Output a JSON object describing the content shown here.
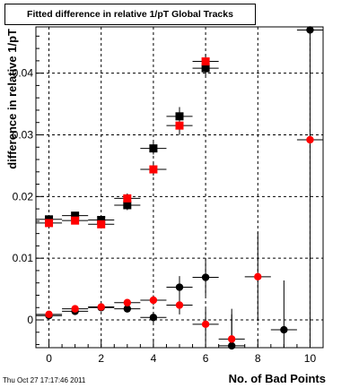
{
  "chart_data": {
    "type": "scatter",
    "title": "Fitted difference in relative 1/pT  Global Tracks",
    "xlabel": "No. of Bad Points",
    "ylabel": "difference in relative 1/pT",
    "xlim": [
      -0.5,
      10.5
    ],
    "ylim": [
      -0.0045,
      0.0475
    ],
    "x_ticks": [
      0,
      2,
      4,
      6,
      8,
      10
    ],
    "x_tick_labels": [
      "0",
      "2",
      "4",
      "6",
      "8",
      "10"
    ],
    "y_ticks": [
      0,
      0.01,
      0.02,
      0.03,
      0.04
    ],
    "y_tick_labels": [
      "0",
      "0.01",
      "0.02",
      "0.03",
      "0.04"
    ],
    "grid": true,
    "series": [
      {
        "marker": "square",
        "color": "#000000",
        "points": [
          {
            "x": 0,
            "y": 0.0163,
            "ey": 0.0006
          },
          {
            "x": 1,
            "y": 0.0169,
            "ey": 0.0006
          },
          {
            "x": 2,
            "y": 0.0162,
            "ey": 0.0006
          },
          {
            "x": 3,
            "y": 0.0186,
            "ey": 0.0008
          },
          {
            "x": 4,
            "y": 0.0278,
            "ey": 0.001
          },
          {
            "x": 5,
            "y": 0.033,
            "ey": 0.0015
          },
          {
            "x": 6,
            "y": 0.0408,
            "ey": 0.0012
          }
        ]
      },
      {
        "marker": "square",
        "color": "#ff0000",
        "points": [
          {
            "x": 0,
            "y": 0.0157,
            "ey": 0.0006
          },
          {
            "x": 1,
            "y": 0.0161,
            "ey": 0.0006
          },
          {
            "x": 2,
            "y": 0.0155,
            "ey": 0.0006
          },
          {
            "x": 3,
            "y": 0.0197,
            "ey": 0.0008
          },
          {
            "x": 4,
            "y": 0.0244,
            "ey": 0.001
          },
          {
            "x": 5,
            "y": 0.0315,
            "ey": 0.0015
          },
          {
            "x": 6,
            "y": 0.0419,
            "ey": 0.0012
          }
        ]
      },
      {
        "marker": "circle",
        "color": "#000000",
        "points": [
          {
            "x": 0,
            "y": 0.0007,
            "ey": 0.0003
          },
          {
            "x": 1,
            "y": 0.0014,
            "ey": 0.0003
          },
          {
            "x": 2,
            "y": 0.002,
            "ey": 0.0004
          },
          {
            "x": 3,
            "y": 0.0018,
            "ey": 0.0005
          },
          {
            "x": 4,
            "y": 0.0004,
            "ey": 0.0009
          },
          {
            "x": 5,
            "y": 0.0053,
            "ey": 0.0018
          },
          {
            "x": 6,
            "y": 0.0069,
            "ey": 0.003
          },
          {
            "x": 7,
            "y": -0.0042,
            "ey": 0.006
          },
          {
            "x": 9,
            "y": -0.0016,
            "ey": 0.008
          },
          {
            "x": 10,
            "y": 0.047,
            "ey": 0.0
          }
        ]
      },
      {
        "marker": "circle",
        "color": "#ff0000",
        "points": [
          {
            "x": 0,
            "y": 0.0009,
            "ey": 0.0003
          },
          {
            "x": 1,
            "y": 0.0018,
            "ey": 0.0003
          },
          {
            "x": 2,
            "y": 0.0021,
            "ey": 0.0004
          },
          {
            "x": 3,
            "y": 0.0028,
            "ey": 0.0005
          },
          {
            "x": 4,
            "y": 0.0032,
            "ey": 0.0008
          },
          {
            "x": 5,
            "y": 0.0024,
            "ey": 0.0015
          },
          {
            "x": 6,
            "y": -0.0007,
            "ey": 0.0025
          },
          {
            "x": 7,
            "y": -0.0031,
            "ey": 0.004
          },
          {
            "x": 8,
            "y": 0.007,
            "ey": 0.0072
          },
          {
            "x": 10,
            "y": 0.0292,
            "ey": 0.033
          }
        ]
      }
    ]
  },
  "footer": {
    "timestamp": "Thu Oct 27 17:17:46 2011"
  }
}
